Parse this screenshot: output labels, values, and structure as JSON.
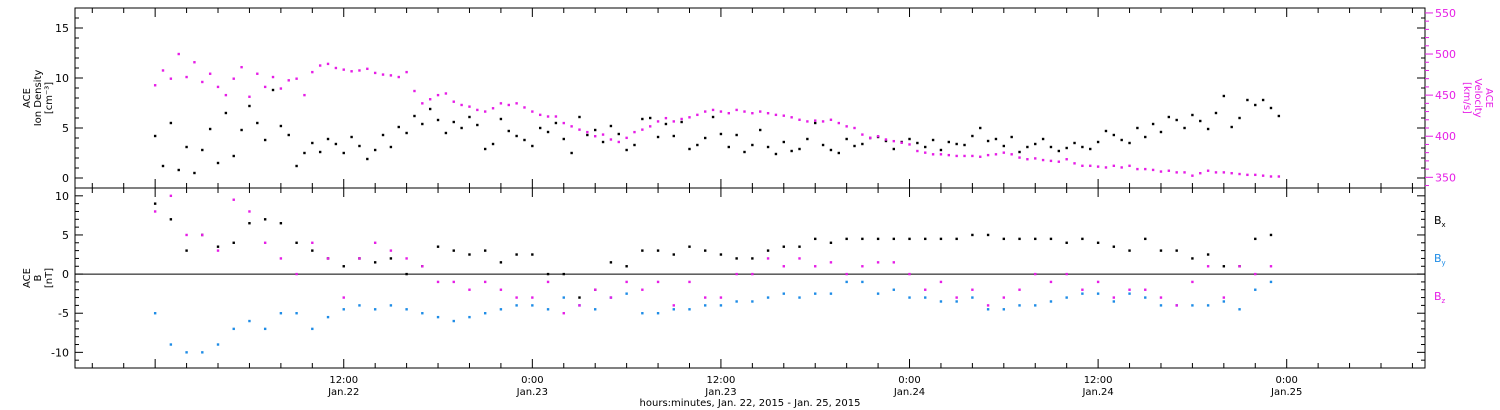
{
  "chart_data": [
    {
      "type": "scatter",
      "panel": "top",
      "left_axis_label_lines": [
        "ACE",
        "Ion Density",
        "[cm⁻³]"
      ],
      "right_axis_label_lines": [
        "ACE",
        "Velocity",
        "[km/s]"
      ],
      "ylim_left": [
        -1,
        17
      ],
      "yticks_left": [
        0,
        5,
        10,
        15
      ],
      "ylim_right": [
        337,
        556
      ],
      "yticks_right": [
        350,
        400,
        450,
        500,
        550
      ],
      "colors": {
        "density": "#000000",
        "velocity": "#e61ee6"
      },
      "series": [
        {
          "name": "Ion Density",
          "axis": "left",
          "x": [
            0,
            0.5,
            1,
            1.5,
            2,
            2.5,
            3,
            3.5,
            4,
            4.5,
            5,
            5.5,
            6,
            6.5,
            7,
            7.5,
            8,
            8.5,
            9,
            9.5,
            10,
            10.5,
            11,
            11.5,
            12,
            12.5,
            13,
            13.5,
            14,
            14.5,
            15,
            15.5,
            16,
            16.5,
            17,
            17.5,
            18,
            18.5,
            19,
            19.5,
            20,
            20.5,
            21,
            21.5,
            22,
            22.5,
            23,
            23.5,
            24,
            24.5,
            25,
            25.5,
            26,
            26.5,
            27,
            27.5,
            28,
            28.5,
            29,
            29.5,
            30,
            30.5,
            31,
            31.5,
            32,
            32.5,
            33,
            33.5,
            34,
            34.5,
            35,
            35.5,
            36,
            36.5,
            37,
            37.5,
            38,
            38.5,
            39,
            39.5,
            40,
            40.5,
            41,
            41.5,
            42,
            42.5,
            43,
            43.5,
            44,
            44.5,
            45,
            45.5,
            46,
            46.5,
            47,
            47.5,
            48,
            48.5,
            49,
            49.5,
            50,
            50.5,
            51,
            51.5,
            52,
            52.5,
            53,
            53.5,
            54,
            54.5,
            55,
            55.5,
            56,
            56.5,
            57,
            57.5,
            58,
            58.5,
            59,
            59.5,
            60,
            60.5,
            61,
            61.5,
            62,
            62.5,
            63,
            63.5,
            64,
            64.5,
            65,
            65.5,
            66,
            66.5,
            67,
            67.5,
            68,
            68.5,
            69,
            69.5,
            70,
            70.5,
            71,
            71.5
          ],
          "y": [
            4.2,
            1.2,
            5.5,
            0.8,
            3.1,
            0.5,
            2.8,
            4.9,
            1.5,
            6.5,
            2.2,
            4.8,
            7.2,
            5.5,
            3.8,
            8.8,
            5.2,
            4.3,
            1.2,
            2.5,
            3.5,
            2.6,
            3.9,
            3.4,
            2.5,
            4.1,
            3.2,
            1.9,
            2.8,
            4.3,
            3.1,
            5.1,
            4.5,
            6.2,
            5.4,
            6.9,
            5.8,
            4.5,
            5.6,
            5.0,
            6.1,
            5.3,
            2.9,
            3.4,
            5.9,
            4.7,
            4.2,
            3.8,
            3.2,
            5.0,
            4.6,
            5.5,
            3.9,
            2.5,
            6.1,
            4.3,
            4.8,
            3.6,
            5.2,
            4.4,
            2.8,
            3.3,
            5.9,
            6.0,
            4.1,
            5.4,
            4.2,
            5.6,
            2.9,
            3.3,
            4.0,
            6.1,
            4.4,
            3.1,
            4.3,
            2.6,
            3.3,
            4.8,
            3.1,
            2.4,
            3.6,
            2.7,
            2.9,
            3.9,
            5.5,
            3.3,
            2.8,
            2.5,
            3.9,
            3.2,
            3.4,
            4.0,
            4.1,
            3.7,
            2.9,
            3.6,
            3.9,
            3.5,
            3.1,
            3.8,
            2.8,
            3.6,
            3.4,
            3.3,
            4.2,
            5.0,
            3.7,
            3.9,
            3.2,
            4.1,
            2.6,
            3.1,
            3.4,
            3.9,
            3.1,
            2.7,
            3.0,
            3.5,
            3.1,
            2.9,
            3.6,
            4.7,
            4.3,
            3.8,
            3.5,
            5.0,
            4.1,
            5.4,
            4.6,
            6.1,
            5.8,
            5.0,
            6.3,
            5.7,
            4.9,
            6.5,
            8.2,
            5.1,
            6.0,
            7.8,
            7.3,
            7.8,
            7.0,
            6.2
          ],
          "notes": "points at 0.5 h sampling (hours from Jan.22 00:00)"
        },
        {
          "name": "Velocity",
          "axis": "right",
          "x": [
            0,
            0.5,
            1,
            1.5,
            2,
            2.5,
            3,
            3.5,
            4,
            4.5,
            5,
            5.5,
            6,
            6.5,
            7,
            7.5,
            8,
            8.5,
            9,
            9.5,
            10,
            10.5,
            11,
            11.5,
            12,
            12.5,
            13,
            13.5,
            14,
            14.5,
            15,
            15.5,
            16,
            16.5,
            17,
            17.5,
            18,
            18.5,
            19,
            19.5,
            20,
            20.5,
            21,
            21.5,
            22,
            22.5,
            23,
            23.5,
            24,
            24.5,
            25,
            25.5,
            26,
            26.5,
            27,
            27.5,
            28,
            28.5,
            29,
            29.5,
            30,
            30.5,
            31,
            31.5,
            32,
            32.5,
            33,
            33.5,
            34,
            34.5,
            35,
            35.5,
            36,
            36.5,
            37,
            37.5,
            38,
            38.5,
            39,
            39.5,
            40,
            40.5,
            41,
            41.5,
            42,
            42.5,
            43,
            43.5,
            44,
            44.5,
            45,
            45.5,
            46,
            46.5,
            47,
            47.5,
            48,
            48.5,
            49,
            49.5,
            50,
            50.5,
            51,
            51.5,
            52,
            52.5,
            53,
            53.5,
            54,
            54.5,
            55,
            55.5,
            56,
            56.5,
            57,
            57.5,
            58,
            58.5,
            59,
            59.5,
            60,
            60.5,
            61,
            61.5,
            62,
            62.5,
            63,
            63.5,
            64,
            64.5,
            65,
            65.5,
            66,
            66.5,
            67,
            67.5,
            68,
            68.5,
            69,
            69.5,
            70,
            70.5,
            71,
            71.5
          ],
          "y": [
            462,
            480,
            470,
            500,
            472,
            490,
            466,
            476,
            460,
            450,
            470,
            484,
            448,
            476,
            460,
            472,
            458,
            468,
            470,
            450,
            478,
            486,
            488,
            483,
            481,
            479,
            480,
            482,
            477,
            475,
            474,
            472,
            478,
            455,
            440,
            445,
            450,
            452,
            442,
            438,
            436,
            432,
            430,
            434,
            440,
            438,
            440,
            435,
            430,
            426,
            424,
            424,
            416,
            412,
            408,
            405,
            400,
            402,
            396,
            393,
            398,
            405,
            408,
            412,
            418,
            422,
            418,
            421,
            423,
            426,
            430,
            432,
            430,
            428,
            432,
            430,
            428,
            430,
            428,
            426,
            425,
            423,
            420,
            418,
            419,
            418,
            420,
            416,
            412,
            410,
            402,
            398,
            400,
            396,
            394,
            392,
            390,
            382,
            380,
            378,
            378,
            377,
            376,
            376,
            376,
            375,
            377,
            378,
            380,
            378,
            374,
            372,
            373,
            371,
            370,
            369,
            372,
            367,
            364,
            364,
            363,
            362,
            364,
            362,
            364,
            360,
            360,
            359,
            357,
            358,
            356,
            356,
            352,
            355,
            358,
            356,
            356,
            355,
            354,
            353,
            353,
            352,
            351,
            351
          ],
          "notes": "points at 0.5 h sampling (hours from Jan.22 00:00)"
        }
      ]
    },
    {
      "type": "scatter",
      "panel": "bottom",
      "left_axis_label_lines": [
        "ACE",
        "B",
        "[nT]"
      ],
      "ylim": [
        -12,
        11
      ],
      "yticks": [
        -10,
        -5,
        0,
        5,
        10
      ],
      "zero_line": true,
      "legend_position": "right",
      "colors": {
        "bx": "#000000",
        "by": "#1e8ce6",
        "bz": "#e61ee6"
      },
      "series": [
        {
          "name": "B",
          "sub": "x",
          "x": [
            0,
            1,
            2,
            3,
            4,
            5,
            6,
            7,
            8,
            9,
            10,
            11,
            12,
            13,
            14,
            15,
            16,
            17,
            18,
            19,
            20,
            21,
            22,
            23,
            24,
            25,
            26,
            27,
            28,
            29,
            30,
            31,
            32,
            33,
            34,
            35,
            36,
            37,
            38,
            39,
            40,
            41,
            42,
            43,
            44,
            45,
            46,
            47,
            48,
            49,
            50,
            51,
            52,
            53,
            54,
            55,
            56,
            57,
            58,
            59,
            60,
            61,
            62,
            63,
            64,
            65,
            66,
            67,
            68,
            69,
            70,
            71
          ],
          "y": [
            9,
            7,
            3,
            5,
            3.5,
            4,
            6.5,
            7,
            6.5,
            4,
            3,
            2,
            1,
            2,
            1.5,
            2,
            0,
            1,
            3.5,
            3,
            2.5,
            3,
            1.5,
            2.5,
            2.5,
            0,
            0,
            -3,
            -2,
            1.5,
            1,
            3,
            3,
            2.5,
            3.5,
            3,
            2.5,
            2,
            2,
            3,
            3.5,
            3.5,
            4.5,
            4,
            4.5,
            4.5,
            4.5,
            4.5,
            4.5,
            4.5,
            4.5,
            4.5,
            5,
            5,
            4.5,
            4.5,
            4.5,
            4.5,
            4,
            4.5,
            4,
            3.5,
            3,
            4.5,
            3,
            3,
            2,
            2.5,
            1,
            1,
            4.5,
            5
          ],
          "notes": "hourly values (hours from Jan.22 00:00)"
        },
        {
          "name": "B",
          "sub": "y",
          "x": [
            0,
            1,
            2,
            3,
            4,
            5,
            6,
            7,
            8,
            9,
            10,
            11,
            12,
            13,
            14,
            15,
            16,
            17,
            18,
            19,
            20,
            21,
            22,
            23,
            24,
            25,
            26,
            27,
            28,
            29,
            30,
            31,
            32,
            33,
            34,
            35,
            36,
            37,
            38,
            39,
            40,
            41,
            42,
            43,
            44,
            45,
            46,
            47,
            48,
            49,
            50,
            51,
            52,
            53,
            54,
            55,
            56,
            57,
            58,
            59,
            60,
            61,
            62,
            63,
            64,
            65,
            66,
            67,
            68,
            69,
            70,
            71
          ],
          "y": [
            -5,
            -9,
            -10,
            -10,
            -9,
            -7,
            -6,
            -7,
            -5,
            -5,
            -7,
            -5.5,
            -4.5,
            -4,
            -4.5,
            -4,
            -4.5,
            -5,
            -5.5,
            -6,
            -5.5,
            -5,
            -4.5,
            -4,
            -4,
            -4.5,
            -3,
            -4,
            -4.5,
            -3,
            -2.5,
            -5,
            -5,
            -4.5,
            -4.5,
            -4,
            -4,
            -3.5,
            -3.5,
            -3,
            -2.5,
            -3,
            -2.5,
            -2.5,
            -1,
            -1,
            -2.5,
            -2,
            -3,
            -3,
            -3.5,
            -3.5,
            -3,
            -4.5,
            -4.5,
            -4,
            -4,
            -3.5,
            -3,
            -2.5,
            -2.5,
            -3.5,
            -2.5,
            -3,
            -4,
            -4,
            -4,
            -4,
            -3.5,
            -4.5,
            -2,
            -1
          ],
          "notes": "hourly values (hours from Jan.22 00:00)"
        },
        {
          "name": "B",
          "sub": "z",
          "x": [
            0,
            1,
            2,
            3,
            4,
            5,
            6,
            7,
            8,
            9,
            10,
            11,
            12,
            13,
            14,
            15,
            16,
            17,
            18,
            19,
            20,
            21,
            22,
            23,
            24,
            25,
            26,
            27,
            28,
            29,
            30,
            31,
            32,
            33,
            34,
            35,
            36,
            37,
            38,
            39,
            40,
            41,
            42,
            43,
            44,
            45,
            46,
            47,
            48,
            49,
            50,
            51,
            52,
            53,
            54,
            55,
            56,
            57,
            58,
            59,
            60,
            61,
            62,
            63,
            64,
            65,
            66,
            67,
            68,
            69,
            70,
            71
          ],
          "y": [
            8,
            10,
            5,
            5,
            3,
            9.5,
            8,
            4,
            2,
            0,
            4,
            2,
            -3,
            2,
            4,
            3,
            2,
            1,
            -1,
            -1,
            -2,
            -1,
            -2,
            -3,
            -3,
            -1,
            -5,
            -4,
            -2,
            -3,
            -1,
            -2,
            -1,
            -4,
            -1,
            -3,
            -3,
            0,
            0,
            2,
            1,
            2,
            1,
            1.5,
            0,
            1,
            1.5,
            1.5,
            0,
            -2,
            -1,
            -3,
            -2,
            -4,
            -3,
            -2,
            0,
            -1,
            0,
            -2,
            -1,
            -3,
            -2,
            -2,
            -3,
            -4,
            -1,
            1,
            -3,
            1,
            0,
            1
          ],
          "notes": "hourly values (hours from Jan.22 00:00)"
        }
      ]
    }
  ],
  "x_axis": {
    "range_hours": [
      -5.1,
      80.8
    ],
    "tick_labels": [
      {
        "hours": 12,
        "time": "12:00",
        "date": "Jan.22"
      },
      {
        "hours": 24,
        "time": "0:00",
        "date": "Jan.23"
      },
      {
        "hours": 36,
        "time": "12:00",
        "date": "Jan.23"
      },
      {
        "hours": 48,
        "time": "0:00",
        "date": "Jan.24"
      },
      {
        "hours": 60,
        "time": "12:00",
        "date": "Jan.24"
      },
      {
        "hours": 72,
        "time": "0:00",
        "date": "Jan.25"
      }
    ],
    "minor_step_hours": 2,
    "title": "hours:minutes, Jan. 22, 2015 - Jan. 25, 2015"
  },
  "legend": [
    {
      "base": "B",
      "sub": "x",
      "color": "#000000"
    },
    {
      "base": "B",
      "sub": "y",
      "color": "#1e8ce6"
    },
    {
      "base": "B",
      "sub": "z",
      "color": "#e61ee6"
    }
  ]
}
